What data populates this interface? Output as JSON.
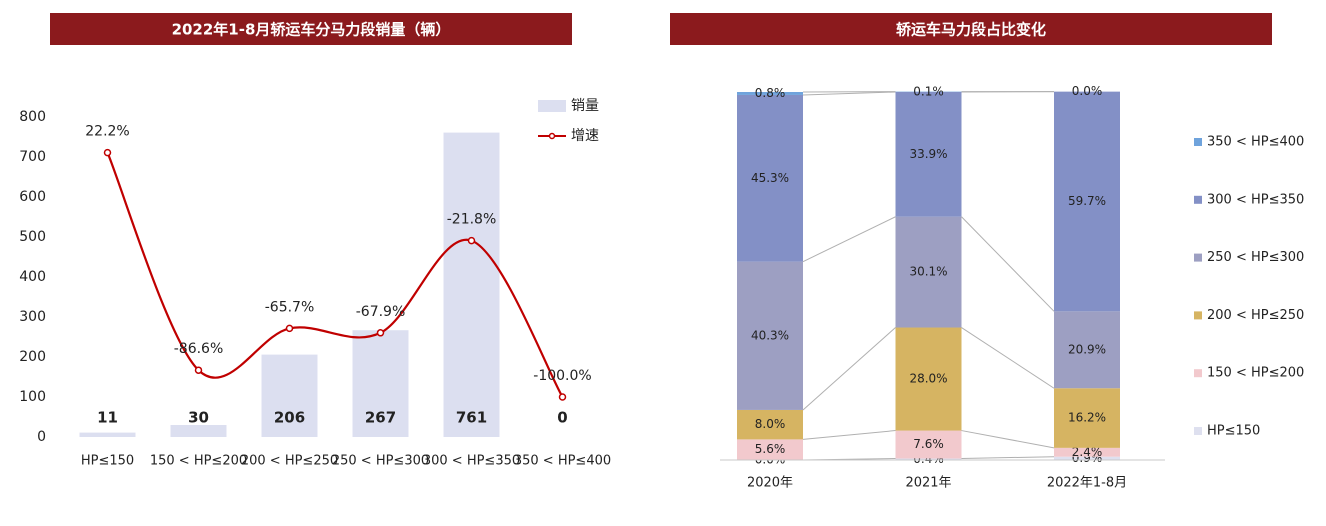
{
  "chart_data": [
    {
      "type": "combo",
      "title": "2022年1-8月轿运车分马力段销量（辆）",
      "categories": [
        "HP≤150",
        "150 < HP≤200",
        "200 < HP≤250",
        "250 < HP≤300",
        "300 < HP≤350",
        "350 < HP≤400"
      ],
      "series": [
        {
          "name": "销量",
          "type": "bar",
          "color": "#dcdff0",
          "values": [
            11,
            30,
            206,
            267,
            761,
            0
          ]
        },
        {
          "name": "增速",
          "type": "line",
          "axis": "y2",
          "color": "#c00000",
          "values": [
            22.2,
            -86.6,
            -65.7,
            -67.9,
            -21.8,
            -100.0
          ],
          "value_labels": [
            "22.2%",
            "-86.6%",
            "-65.7%",
            "-67.9%",
            "-21.8%",
            "-100.0%"
          ]
        }
      ],
      "ylim": [
        0,
        800
      ],
      "yticks": [
        0,
        100,
        200,
        300,
        400,
        500,
        600,
        700,
        800
      ],
      "y2lim": [
        -120,
        40
      ],
      "legend": "top right"
    },
    {
      "type": "stacked_bar",
      "title": "轿运车马力段占比变化",
      "categories": [
        "2020年",
        "2021年",
        "2022年1-8月"
      ],
      "series": [
        {
          "name": "HP≤150",
          "color": "#dee0ef",
          "values": [
            0.0,
            0.4,
            0.9
          ],
          "value_labels": [
            "0.0%",
            "0.4%",
            "0.9%"
          ]
        },
        {
          "name": "150 < HP≤200",
          "color": "#f2c9cd",
          "values": [
            5.6,
            7.6,
            2.4
          ],
          "value_labels": [
            "5.6%",
            "7.6%",
            "2.4%"
          ]
        },
        {
          "name": "200 < HP≤250",
          "color": "#d6b462",
          "values": [
            8.0,
            28.0,
            16.2
          ],
          "value_labels": [
            "8.0%",
            "28.0%",
            "16.2%"
          ]
        },
        {
          "name": "250 < HP≤300",
          "color": "#9d9fc2",
          "values": [
            40.3,
            30.1,
            20.9
          ],
          "value_labels": [
            "40.3%",
            "30.1%",
            "20.9%"
          ]
        },
        {
          "name": "300 < HP≤350",
          "color": "#8390c6",
          "values": [
            45.3,
            33.9,
            59.7
          ],
          "value_labels": [
            "45.3%",
            "33.9%",
            "59.7%"
          ]
        },
        {
          "name": "350 < HP≤400",
          "color": "#6fa3dc",
          "values": [
            0.8,
            0.1,
            0.0
          ],
          "value_labels": [
            "0.8%",
            "0.1%",
            "0.0%"
          ]
        }
      ],
      "ylim": [
        0,
        100
      ],
      "legend": "right"
    }
  ]
}
